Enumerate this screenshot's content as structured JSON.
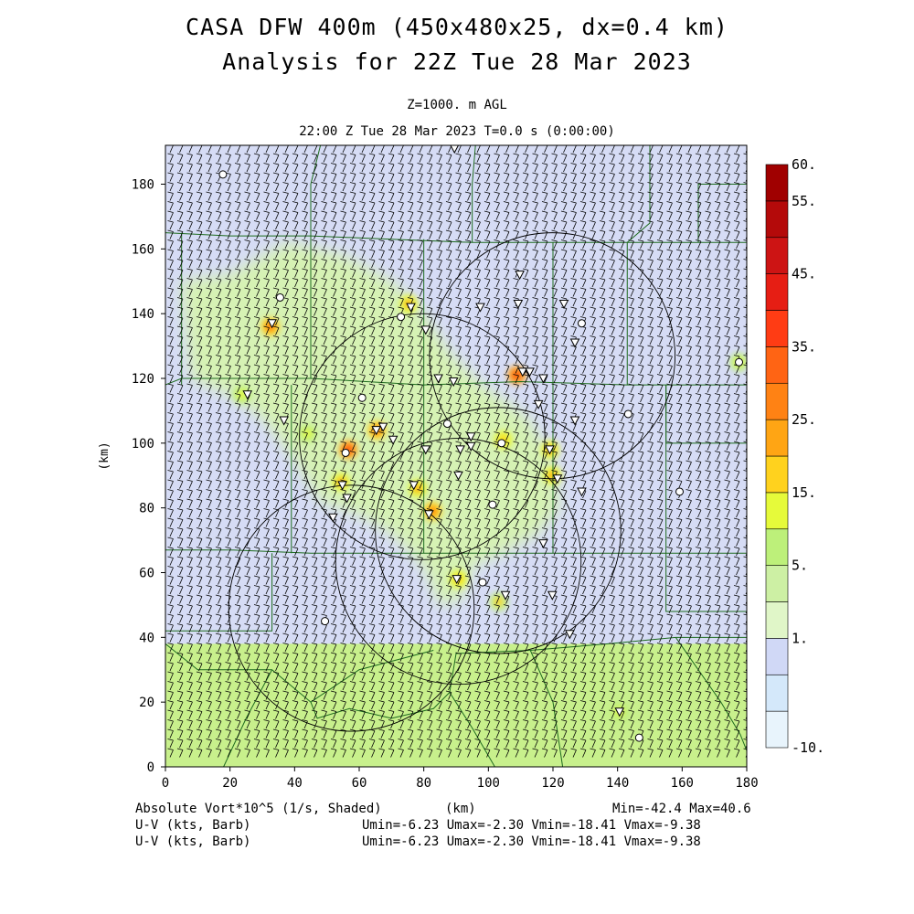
{
  "title_line1": "CASA DFW 400m (450x480x25, dx=0.4 km)",
  "title_line2": "Analysis for 22Z Tue 28 Mar 2023",
  "level_label": "Z=1000. m AGL",
  "time_label": "22:00 Z Tue 28 Mar 2023    T=0.0 s (0:00:00)",
  "footer": {
    "field_label": "Absolute Vort*10^5 (1/s, Shaded)",
    "xunit_label": "(km)",
    "minmax": "Min=-42.4 Max=40.6",
    "wind_label_1": "U-V (kts, Barb)",
    "wind_label_2": "U-V (kts, Barb)",
    "wind_stats_1": "Umin=-6.23 Umax=-2.30 Vmin=-18.41 Vmax=-9.38",
    "wind_stats_2": "Umin=-6.23 Umax=-2.30 Vmin=-18.41 Vmax=-9.38"
  },
  "colors": {
    "background_low": "#d6dcf5",
    "background_mid": "#d6f2b4",
    "background_south": "#c8f08c",
    "county_lines": "#1e6b1e",
    "barbs": "#000000"
  },
  "chart_data": {
    "type": "heatmap",
    "xlabel": "(km)",
    "ylabel": "(km)",
    "xlim": [
      0,
      180
    ],
    "ylim": [
      0,
      192
    ],
    "xticks": [
      0,
      20,
      40,
      60,
      80,
      100,
      120,
      140,
      160,
      180
    ],
    "yticks": [
      0,
      20,
      40,
      60,
      80,
      100,
      120,
      140,
      160,
      180
    ],
    "colorbar": {
      "levels": [
        -10,
        -5,
        0,
        1,
        3,
        5,
        10,
        15,
        20,
        25,
        30,
        35,
        40,
        45,
        50,
        55,
        60
      ],
      "labels": [
        {
          "value": 60,
          "text": "60."
        },
        {
          "value": 55,
          "text": "55."
        },
        {
          "value": 45,
          "text": "45."
        },
        {
          "value": 35,
          "text": "35."
        },
        {
          "value": 25,
          "text": "25."
        },
        {
          "value": 15,
          "text": "15."
        },
        {
          "value": 5,
          "text": "5."
        },
        {
          "value": 1,
          "text": "1."
        },
        {
          "value": -10,
          "text": "-10."
        }
      ],
      "colors": [
        "#e8f4fc",
        "#d4e8fa",
        "#d0d8f6",
        "#e0f6c8",
        "#cdf0a4",
        "#bdf07a",
        "#e6fa3a",
        "#ffd21e",
        "#ffa514",
        "#ff8214",
        "#ff6414",
        "#ff3c14",
        "#e61e14",
        "#cd1414",
        "#b40a0a",
        "#a00000"
      ]
    },
    "radars": [
      {
        "x": 79.5,
        "y": 102,
        "r": 38
      },
      {
        "x": 119.8,
        "y": 127,
        "r": 38
      },
      {
        "x": 103,
        "y": 73,
        "r": 38
      },
      {
        "x": 57.6,
        "y": 49,
        "r": 38
      },
      {
        "x": 90.7,
        "y": 63.5,
        "r": 38
      }
    ],
    "hotspots": [
      {
        "x": 32.5,
        "y": 136,
        "v": 30
      },
      {
        "x": 56.6,
        "y": 98,
        "v": 38
      },
      {
        "x": 65.5,
        "y": 104,
        "v": 32
      },
      {
        "x": 54.4,
        "y": 88,
        "v": 22
      },
      {
        "x": 78.1,
        "y": 86,
        "v": 24
      },
      {
        "x": 82.7,
        "y": 79,
        "v": 26
      },
      {
        "x": 90.7,
        "y": 58,
        "v": 18
      },
      {
        "x": 103.2,
        "y": 51,
        "v": 16
      },
      {
        "x": 108.8,
        "y": 121,
        "v": 35
      },
      {
        "x": 119.1,
        "y": 98,
        "v": 22
      },
      {
        "x": 119.8,
        "y": 90,
        "v": 20
      },
      {
        "x": 104.6,
        "y": 101,
        "v": 18
      },
      {
        "x": 75.3,
        "y": 143,
        "v": 24
      },
      {
        "x": 177.6,
        "y": 125,
        "v": 14
      },
      {
        "x": 140.6,
        "y": 17,
        "v": 14
      },
      {
        "x": 23.7,
        "y": 115,
        "v": 12
      },
      {
        "x": 44,
        "y": 103,
        "v": 12
      }
    ],
    "markers": [
      {
        "x": 17.8,
        "y": 183,
        "s": "c"
      },
      {
        "x": 35.5,
        "y": 145,
        "s": "c"
      },
      {
        "x": 33,
        "y": 137,
        "s": "t"
      },
      {
        "x": 25.4,
        "y": 115,
        "s": "t"
      },
      {
        "x": 36.7,
        "y": 107,
        "s": "t"
      },
      {
        "x": 60.9,
        "y": 114,
        "s": "c"
      },
      {
        "x": 55.8,
        "y": 97,
        "s": "c"
      },
      {
        "x": 65.3,
        "y": 104,
        "s": "t"
      },
      {
        "x": 67.4,
        "y": 105,
        "s": "t"
      },
      {
        "x": 70.5,
        "y": 101,
        "s": "t"
      },
      {
        "x": 72.9,
        "y": 139,
        "s": "c"
      },
      {
        "x": 76,
        "y": 142,
        "s": "t"
      },
      {
        "x": 80.6,
        "y": 135,
        "s": "t"
      },
      {
        "x": 84.5,
        "y": 120,
        "s": "t"
      },
      {
        "x": 89.2,
        "y": 119,
        "s": "t"
      },
      {
        "x": 87.3,
        "y": 106,
        "s": "c"
      },
      {
        "x": 80.6,
        "y": 98,
        "s": "t"
      },
      {
        "x": 91.3,
        "y": 98,
        "s": "t"
      },
      {
        "x": 94.6,
        "y": 102,
        "s": "t"
      },
      {
        "x": 94.6,
        "y": 99,
        "s": "t"
      },
      {
        "x": 104.1,
        "y": 100,
        "s": "c"
      },
      {
        "x": 97.5,
        "y": 142,
        "s": "t"
      },
      {
        "x": 109.7,
        "y": 152,
        "s": "t"
      },
      {
        "x": 109.2,
        "y": 143,
        "s": "t"
      },
      {
        "x": 110.6,
        "y": 122,
        "s": "t"
      },
      {
        "x": 112.8,
        "y": 122,
        "s": "t"
      },
      {
        "x": 117,
        "y": 120,
        "s": "t"
      },
      {
        "x": 115.5,
        "y": 112,
        "s": "t"
      },
      {
        "x": 123.4,
        "y": 143,
        "s": "t"
      },
      {
        "x": 128.9,
        "y": 137,
        "s": "c"
      },
      {
        "x": 126.8,
        "y": 131,
        "s": "t"
      },
      {
        "x": 126.8,
        "y": 107,
        "s": "t"
      },
      {
        "x": 119,
        "y": 98,
        "s": "t"
      },
      {
        "x": 121.4,
        "y": 89,
        "s": "t"
      },
      {
        "x": 128.9,
        "y": 85,
        "s": "t"
      },
      {
        "x": 143.3,
        "y": 109,
        "s": "c"
      },
      {
        "x": 159.2,
        "y": 85,
        "s": "c"
      },
      {
        "x": 177.6,
        "y": 125,
        "s": "c"
      },
      {
        "x": 90.7,
        "y": 90,
        "s": "t"
      },
      {
        "x": 76.9,
        "y": 87,
        "s": "t"
      },
      {
        "x": 81.6,
        "y": 78,
        "s": "t"
      },
      {
        "x": 101.3,
        "y": 81,
        "s": "c"
      },
      {
        "x": 117,
        "y": 69,
        "s": "t"
      },
      {
        "x": 54.8,
        "y": 87,
        "s": "t"
      },
      {
        "x": 56.2,
        "y": 83,
        "s": "t"
      },
      {
        "x": 51.9,
        "y": 77,
        "s": "t"
      },
      {
        "x": 90.2,
        "y": 58,
        "s": "t"
      },
      {
        "x": 98.2,
        "y": 57,
        "s": "c"
      },
      {
        "x": 105.3,
        "y": 53,
        "s": "t"
      },
      {
        "x": 119.8,
        "y": 53,
        "s": "t"
      },
      {
        "x": 49.4,
        "y": 45,
        "s": "c"
      },
      {
        "x": 125.2,
        "y": 41,
        "s": "t"
      },
      {
        "x": 140.6,
        "y": 17,
        "s": "t"
      },
      {
        "x": 146.7,
        "y": 9,
        "s": "c"
      },
      {
        "x": 89.5,
        "y": 191,
        "s": "t"
      }
    ],
    "counties": [
      [
        [
          0,
          118
        ],
        [
          5,
          120
        ],
        [
          45,
          120
        ],
        [
          80,
          118
        ],
        [
          110,
          119
        ],
        [
          143,
          118
        ],
        [
          175,
          118
        ],
        [
          180,
          118
        ]
      ],
      [
        [
          0,
          67
        ],
        [
          20,
          67
        ],
        [
          45,
          66
        ],
        [
          70,
          66
        ],
        [
          95,
          66
        ],
        [
          130,
          66
        ],
        [
          180,
          66
        ]
      ],
      [
        [
          0,
          165
        ],
        [
          20,
          164
        ],
        [
          45,
          164
        ],
        [
          70,
          163
        ],
        [
          95,
          162
        ],
        [
          120,
          162
        ],
        [
          150,
          162
        ],
        [
          180,
          162
        ]
      ],
      [
        [
          5,
          165
        ],
        [
          5,
          118
        ]
      ],
      [
        [
          45,
          164
        ],
        [
          45,
          120
        ]
      ],
      [
        [
          80,
          163
        ],
        [
          80,
          118
        ]
      ],
      [
        [
          120,
          162
        ],
        [
          120,
          118
        ]
      ],
      [
        [
          143,
          162
        ],
        [
          143,
          118
        ]
      ],
      [
        [
          39,
          118
        ],
        [
          39,
          66
        ]
      ],
      [
        [
          80,
          118
        ],
        [
          80,
          66
        ]
      ],
      [
        [
          120,
          118
        ],
        [
          120,
          66
        ]
      ],
      [
        [
          155,
          118
        ],
        [
          155,
          66
        ]
      ],
      [
        [
          33,
          66
        ],
        [
          33,
          42
        ],
        [
          0,
          42
        ]
      ],
      [
        [
          0,
          38
        ],
        [
          10,
          30
        ],
        [
          33,
          30
        ],
        [
          45,
          20
        ],
        [
          47,
          15
        ],
        [
          57,
          18
        ],
        [
          70,
          15
        ],
        [
          83,
          18
        ],
        [
          88,
          23
        ],
        [
          95,
          12
        ],
        [
          102,
          0
        ]
      ],
      [
        [
          33,
          30
        ],
        [
          25,
          15
        ],
        [
          18,
          0
        ]
      ],
      [
        [
          88,
          23
        ],
        [
          90,
          35
        ],
        [
          113,
          36
        ],
        [
          137,
          38
        ],
        [
          158,
          40
        ],
        [
          180,
          40
        ]
      ],
      [
        [
          83,
          36
        ],
        [
          60,
          30
        ],
        [
          45,
          20
        ]
      ],
      [
        [
          113,
          36
        ],
        [
          120,
          20
        ],
        [
          123,
          0
        ]
      ],
      [
        [
          158,
          40
        ],
        [
          165,
          30
        ],
        [
          172,
          20
        ],
        [
          178,
          10
        ],
        [
          180,
          5
        ]
      ],
      [
        [
          155,
          66
        ],
        [
          155,
          48
        ],
        [
          180,
          48
        ]
      ],
      [
        [
          180,
          100
        ],
        [
          155,
          100
        ],
        [
          155,
          118
        ]
      ],
      [
        [
          165,
          162
        ],
        [
          165,
          180
        ],
        [
          180,
          180
        ]
      ],
      [
        [
          45,
          164
        ],
        [
          45,
          180
        ],
        [
          48,
          192
        ]
      ],
      [
        [
          95,
          162
        ],
        [
          95,
          180
        ],
        [
          96,
          192
        ]
      ],
      [
        [
          143,
          162
        ],
        [
          150,
          168
        ],
        [
          150,
          192
        ]
      ]
    ]
  }
}
